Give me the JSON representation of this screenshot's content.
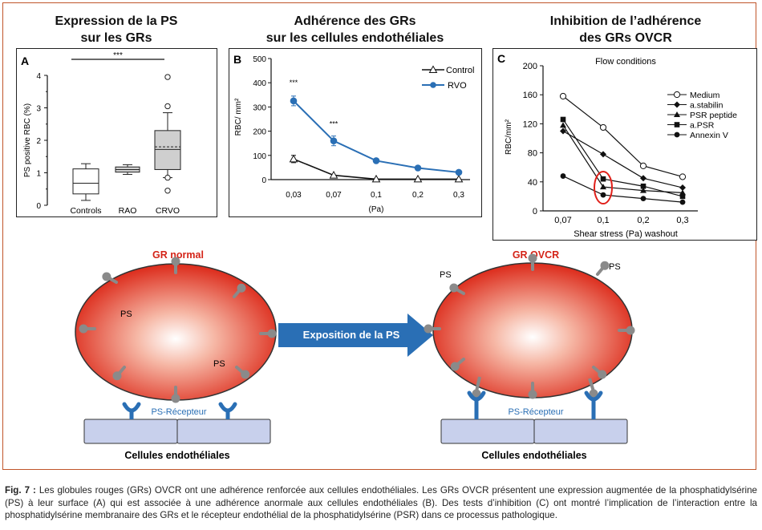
{
  "titles": {
    "a_line1": "Expression de la PS",
    "a_line2": "sur les GRs",
    "b_line1": "Adhérence des GRs",
    "b_line2": "sur les cellules endothéliales",
    "c_line1": "Inhibition de l’adhérence",
    "c_line2": "des GRs OVCR"
  },
  "chart_data": [
    {
      "type": "box",
      "panel_letter": "A",
      "ylabel": "PS positive RBC (%)",
      "ylim": [
        0,
        4
      ],
      "yticks": [
        "0",
        "1",
        "2",
        "3",
        "4"
      ],
      "categories": [
        "Controls",
        "RAO",
        "CRVO"
      ],
      "significance": "***",
      "boxes": [
        {
          "name": "Controls",
          "min": 0.15,
          "q1": 0.35,
          "median": 0.68,
          "q3": 1.12,
          "max": 1.28,
          "outliers": []
        },
        {
          "name": "RAO",
          "min": 0.95,
          "q1": 1.02,
          "median": 1.1,
          "q3": 1.18,
          "max": 1.25,
          "outliers": []
        },
        {
          "name": "CRVO",
          "min": 0.85,
          "q1": 1.1,
          "median": 1.72,
          "mean": 1.8,
          "q3": 2.3,
          "max": 2.85,
          "outliers": [
            0.45,
            0.85,
            3.05,
            3.95
          ]
        }
      ]
    },
    {
      "type": "line",
      "panel_letter": "B",
      "ylabel": "RBC/ mm²",
      "xlabel": "(Pa)",
      "categories": [
        "0,03",
        "0,07",
        "0,1",
        "0,2",
        "0,3"
      ],
      "yticks": [
        "0",
        "100",
        "200",
        "300",
        "400",
        "500"
      ],
      "ylim": [
        0,
        500
      ],
      "series": [
        {
          "name": "Control",
          "values": [
            85,
            18,
            2,
            2,
            2
          ],
          "errors": [
            15,
            0,
            0,
            0,
            0
          ]
        },
        {
          "name": "RVO",
          "values": [
            325,
            160,
            78,
            48,
            30
          ],
          "errors": [
            20,
            20,
            0,
            0,
            0
          ]
        }
      ],
      "annotations": [
        "***",
        "***"
      ],
      "legend": "top-right"
    },
    {
      "type": "line",
      "panel_letter": "C",
      "subtitle": "Flow conditions",
      "ylabel": "RBC/mm²",
      "xlabel": "Shear stress (Pa) washout",
      "categories": [
        "0,07",
        "0,1",
        "0,2",
        "0,3"
      ],
      "yticks": [
        "0",
        "40",
        "80",
        "120",
        "160",
        "200"
      ],
      "ylim": [
        0,
        200
      ],
      "series": [
        {
          "name": "Medium",
          "values": [
            158,
            115,
            62,
            47
          ]
        },
        {
          "name": "a.stabilin",
          "values": [
            110,
            78,
            45,
            32
          ]
        },
        {
          "name": "PSR peptide",
          "values": [
            118,
            33,
            28,
            25
          ]
        },
        {
          "name": "a.PSR",
          "values": [
            126,
            44,
            34,
            20
          ]
        },
        {
          "name": "Annexin V",
          "values": [
            48,
            22,
            17,
            12
          ]
        }
      ],
      "legend": "top-right"
    }
  ],
  "diagram": {
    "left_title": "GR normal",
    "right_title": "GR OVCR",
    "arrow_label": "Exposition de la PS",
    "ps_label": "PS",
    "receptor_label": "PS-Récepteur",
    "cells_label": "Cellules endothéliales",
    "cell_color": "#e03020",
    "pin_color": "#8a8a8a",
    "arrow_color": "#2a6fb5",
    "endothelial_color": "#c8d0ec",
    "receptor_color": "#2a6fb5"
  },
  "caption": {
    "label": "Fig. 7 :",
    "text": "Les globules rouges (GRs) OVCR ont une adhérence renforcée aux cellules endothéliales. Les GRs OVCR présentent une expression augmentée de la phosphatidylsérine (PS) à leur surface (A) qui est associée à une adhérence anormale aux cellules endothéliales (B). Des tests d’inhibition (C) ont montré l’implication de l’interaction entre la phosphatidylsérine membranaire des GRs et le récepteur endothélial de la phosphatidylsérine (PSR) dans ce processus pathologique."
  }
}
